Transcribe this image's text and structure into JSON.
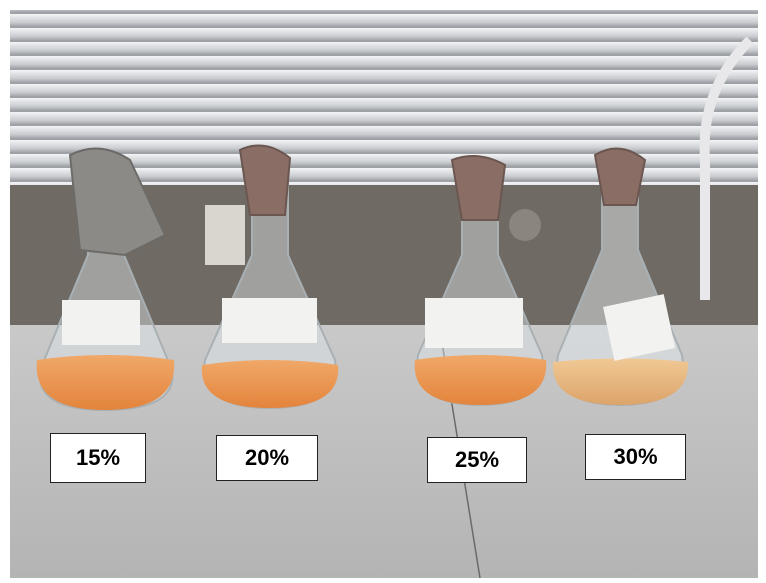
{
  "labels": [
    "15%",
    "20%",
    "25%",
    "30%"
  ]
}
